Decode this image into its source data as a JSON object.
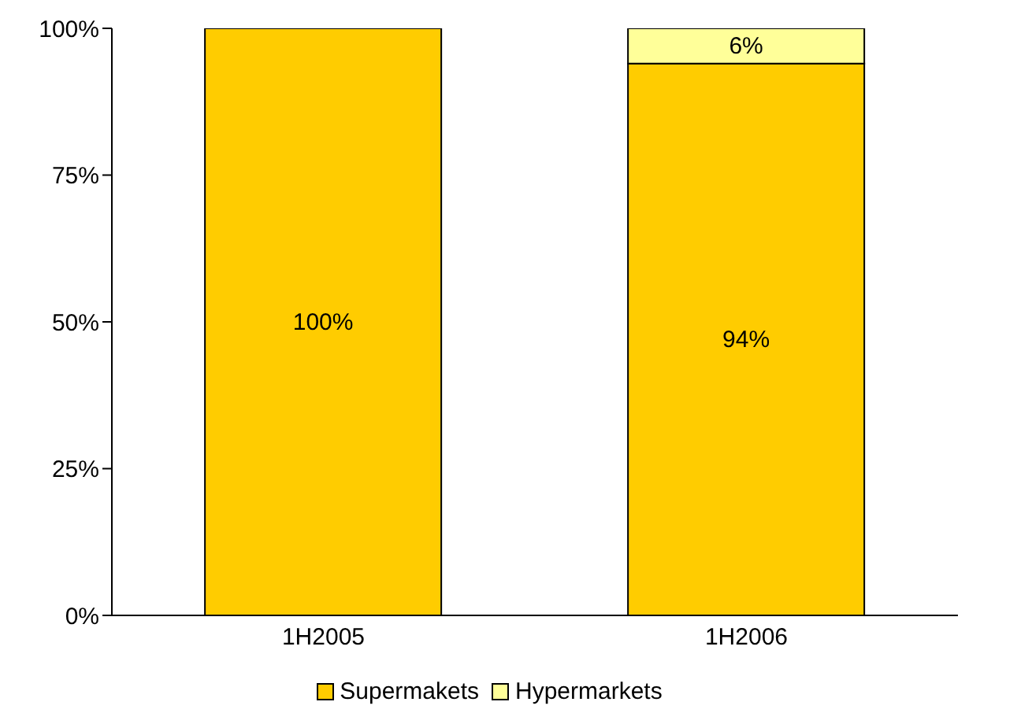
{
  "chart_data": {
    "type": "bar",
    "stacked": true,
    "categories": [
      "1H2005",
      "1H2006"
    ],
    "series": [
      {
        "name": "Supermakets",
        "color": "#ffcc00",
        "values": [
          100,
          94
        ],
        "value_labels": [
          "100%",
          "94%"
        ]
      },
      {
        "name": "Hypermarkets",
        "color": "#ffff99",
        "values": [
          0,
          6
        ],
        "value_labels": [
          null,
          "6%"
        ]
      }
    ],
    "ylim": [
      0,
      100
    ],
    "yticks": [
      {
        "value": 0,
        "label": "0%"
      },
      {
        "value": 25,
        "label": "25%"
      },
      {
        "value": 50,
        "label": "50%"
      },
      {
        "value": 75,
        "label": "75%"
      },
      {
        "value": 100,
        "label": "100%"
      }
    ],
    "legend": "bottom"
  }
}
